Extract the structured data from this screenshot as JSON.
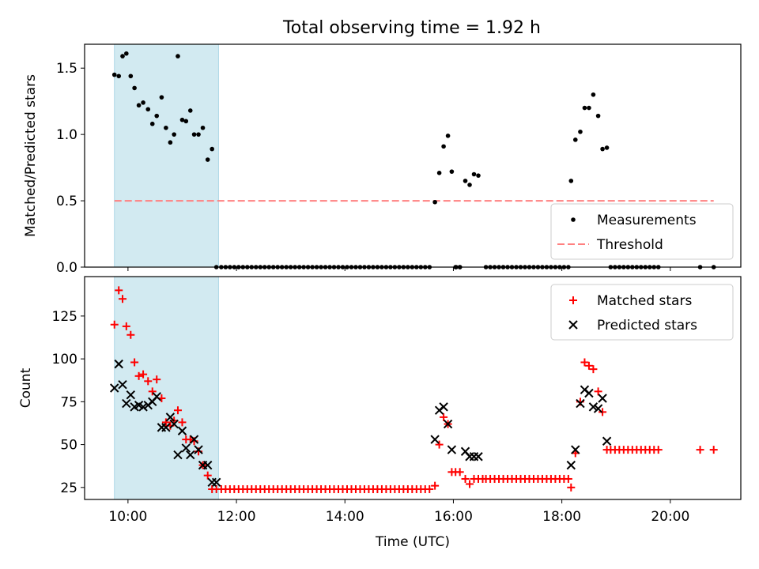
{
  "title": "Total observing time = 1.92 h",
  "colors": {
    "shade": "#add8e6",
    "threshold": "#ff8080",
    "matched": "#ff0000",
    "predicted": "#000000",
    "measurement": "#000000"
  },
  "chart_data": [
    {
      "type": "scatter",
      "ylabel": "Matched/Predicted stars",
      "xlim": [
        9.2,
        21.3
      ],
      "ylim": [
        0,
        1.68
      ],
      "yticks": [
        0.0,
        0.5,
        1.0,
        1.5
      ],
      "ytick_labels": [
        "0.0",
        "0.5",
        "1.0",
        "1.5"
      ],
      "xticks": [
        10,
        12,
        14,
        16,
        18,
        20
      ],
      "shaded_region": [
        9.75,
        11.67
      ],
      "legend": {
        "placement": "lower right",
        "entries": [
          "Measurements",
          "Threshold"
        ]
      },
      "threshold": {
        "name": "Threshold",
        "value": 0.5,
        "x": [
          9.75,
          20.8
        ]
      },
      "series": [
        {
          "name": "Measurements",
          "x": [
            9.75,
            9.83,
            9.9,
            9.97,
            10.05,
            10.12,
            10.2,
            10.28,
            10.37,
            10.45,
            10.53,
            10.62,
            10.7,
            10.78,
            10.85,
            10.92,
            11.0,
            11.07,
            11.15,
            11.22,
            11.3,
            11.38,
            11.47,
            11.55,
            11.63,
            15.66,
            15.74,
            15.82,
            15.9,
            15.97,
            16.04,
            16.12,
            16.22,
            16.3,
            16.38,
            16.46,
            18.17,
            18.25,
            18.34,
            18.42,
            18.5,
            18.58,
            18.67,
            18.75,
            18.83,
            11.72,
            11.8,
            11.88,
            11.96,
            12.04,
            12.12,
            12.2,
            12.28,
            12.36,
            12.44,
            12.52,
            12.6,
            12.68,
            12.76,
            12.84,
            12.92,
            13.0,
            13.08,
            13.16,
            13.24,
            13.32,
            13.4,
            13.48,
            13.56,
            13.64,
            13.72,
            13.8,
            13.88,
            13.96,
            14.04,
            14.12,
            14.2,
            14.28,
            14.36,
            14.44,
            14.52,
            14.6,
            14.68,
            14.76,
            14.84,
            14.92,
            15.0,
            15.08,
            15.16,
            15.24,
            15.32,
            15.4,
            15.48,
            15.56,
            16.05,
            16.12,
            16.6,
            16.68,
            16.76,
            16.84,
            16.92,
            17.0,
            17.08,
            17.16,
            17.24,
            17.32,
            17.4,
            17.48,
            17.56,
            17.64,
            17.72,
            17.8,
            17.88,
            17.96,
            18.04,
            18.12,
            18.9,
            18.98,
            19.06,
            19.14,
            19.22,
            19.3,
            19.38,
            19.46,
            19.54,
            19.62,
            19.7,
            19.78,
            20.55,
            20.8
          ],
          "values": [
            1.45,
            1.44,
            1.59,
            1.61,
            1.44,
            1.35,
            1.22,
            1.24,
            1.19,
            1.08,
            1.14,
            1.28,
            1.05,
            0.94,
            1.0,
            1.59,
            1.11,
            1.1,
            1.18,
            1.0,
            1.0,
            1.05,
            0.81,
            0.89,
            0.0,
            0.49,
            0.71,
            0.91,
            0.99,
            0.72,
            0.0,
            0.0,
            0.65,
            0.62,
            0.7,
            0.69,
            0.65,
            0.96,
            1.02,
            1.2,
            1.2,
            1.3,
            1.14,
            0.89,
            0.9,
            0,
            0,
            0,
            0,
            0,
            0,
            0,
            0,
            0,
            0,
            0,
            0,
            0,
            0,
            0,
            0,
            0,
            0,
            0,
            0,
            0,
            0,
            0,
            0,
            0,
            0,
            0,
            0,
            0,
            0,
            0,
            0,
            0,
            0,
            0,
            0,
            0,
            0,
            0,
            0,
            0,
            0,
            0,
            0,
            0,
            0,
            0,
            0,
            0,
            0,
            0,
            0,
            0,
            0,
            0,
            0,
            0,
            0,
            0,
            0,
            0,
            0,
            0,
            0,
            0,
            0,
            0,
            0,
            0,
            0,
            0,
            0,
            0,
            0,
            0,
            0,
            0,
            0,
            0,
            0,
            0,
            0,
            0,
            0,
            0
          ]
        }
      ]
    },
    {
      "type": "scatter",
      "xlabel": "Time (UTC)",
      "ylabel": "Count",
      "xlim": [
        9.2,
        21.3
      ],
      "ylim": [
        18,
        148
      ],
      "yticks": [
        25,
        50,
        75,
        100,
        125
      ],
      "ytick_labels": [
        "25",
        "50",
        "75",
        "100",
        "125"
      ],
      "xticks": [
        10,
        12,
        14,
        16,
        18,
        20
      ],
      "xtick_labels": [
        "10:00",
        "12:00",
        "14:00",
        "16:00",
        "18:00",
        "20:00"
      ],
      "shaded_region": [
        9.75,
        11.67
      ],
      "legend": {
        "placement": "upper right",
        "entries": [
          "Matched stars",
          "Predicted stars"
        ]
      },
      "series": [
        {
          "name": "Matched stars",
          "x": [
            9.75,
            9.83,
            9.9,
            9.97,
            10.05,
            10.12,
            10.2,
            10.28,
            10.37,
            10.45,
            10.53,
            10.62,
            10.7,
            10.78,
            10.85,
            10.92,
            11.0,
            11.07,
            11.15,
            11.22,
            11.3,
            11.38,
            11.47,
            11.55,
            11.63,
            11.72,
            11.8,
            11.88,
            11.96,
            12.04,
            12.12,
            12.2,
            12.28,
            12.36,
            12.44,
            12.52,
            12.6,
            12.68,
            12.76,
            12.84,
            12.92,
            13.0,
            13.08,
            13.16,
            13.24,
            13.32,
            13.4,
            13.48,
            13.56,
            13.64,
            13.72,
            13.8,
            13.88,
            13.96,
            14.04,
            14.12,
            14.2,
            14.28,
            14.36,
            14.44,
            14.52,
            14.6,
            14.68,
            14.76,
            14.84,
            14.92,
            15.0,
            15.08,
            15.16,
            15.24,
            15.32,
            15.4,
            15.48,
            15.56,
            15.66,
            15.74,
            15.82,
            15.9,
            15.97,
            16.04,
            16.12,
            16.22,
            16.3,
            16.38,
            16.46,
            16.54,
            16.6,
            16.68,
            16.76,
            16.84,
            16.92,
            17.0,
            17.08,
            17.16,
            17.24,
            17.32,
            17.4,
            17.48,
            17.56,
            17.64,
            17.72,
            17.8,
            17.88,
            17.96,
            18.04,
            18.12,
            18.17,
            18.25,
            18.34,
            18.42,
            18.5,
            18.58,
            18.67,
            18.75,
            18.83,
            18.9,
            18.98,
            19.06,
            19.14,
            19.22,
            19.3,
            19.38,
            19.46,
            19.54,
            19.62,
            19.7,
            19.78,
            20.55,
            20.8
          ],
          "values": [
            120,
            140,
            135,
            119,
            114,
            98,
            90,
            91,
            87,
            81,
            88,
            77,
            63,
            61,
            64,
            70,
            63,
            53,
            53,
            52,
            46,
            38,
            32,
            24,
            24,
            24,
            24,
            24,
            24,
            24,
            24,
            24,
            24,
            24,
            24,
            24,
            24,
            24,
            24,
            24,
            24,
            24,
            24,
            24,
            24,
            24,
            24,
            24,
            24,
            24,
            24,
            24,
            24,
            24,
            24,
            24,
            24,
            24,
            24,
            24,
            24,
            24,
            24,
            24,
            24,
            24,
            24,
            24,
            24,
            24,
            24,
            24,
            24,
            24,
            26,
            50,
            66,
            62,
            34,
            34,
            34,
            30,
            27,
            30,
            30,
            30,
            30,
            30,
            30,
            30,
            30,
            30,
            30,
            30,
            30,
            30,
            30,
            30,
            30,
            30,
            30,
            30,
            30,
            30,
            30,
            30,
            25,
            45,
            75,
            98,
            96,
            94,
            81,
            69,
            47,
            47,
            47,
            47,
            47,
            47,
            47,
            47,
            47,
            47,
            47,
            47,
            47,
            47,
            47
          ]
        },
        {
          "name": "Predicted stars",
          "x": [
            9.75,
            9.83,
            9.9,
            9.97,
            10.05,
            10.12,
            10.2,
            10.28,
            10.37,
            10.45,
            10.53,
            10.62,
            10.7,
            10.78,
            10.85,
            10.92,
            11.0,
            11.07,
            11.15,
            11.22,
            11.3,
            11.38,
            11.47,
            11.55,
            11.63,
            15.66,
            15.74,
            15.82,
            15.9,
            15.97,
            16.22,
            16.3,
            16.38,
            16.46,
            18.17,
            18.25,
            18.34,
            18.42,
            18.5,
            18.58,
            18.67,
            18.75,
            18.83
          ],
          "values": [
            83,
            97,
            85,
            74,
            79,
            72,
            73,
            72,
            73,
            75,
            78,
            60,
            60,
            66,
            62,
            44,
            58,
            48,
            44,
            53,
            47,
            38,
            38,
            28,
            28,
            53,
            70,
            72,
            62,
            47,
            46,
            43,
            43,
            43,
            38,
            47,
            74,
            82,
            80,
            72,
            71,
            77,
            52
          ]
        }
      ]
    }
  ]
}
